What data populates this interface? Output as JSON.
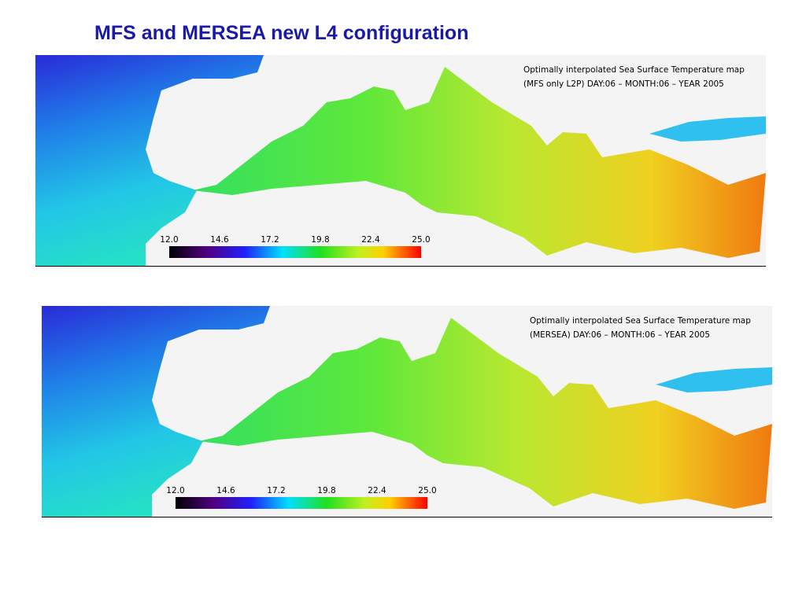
{
  "header": {
    "title": "MFS and MERSEA new L4 configuration"
  },
  "panels": [
    {
      "caption": [
        "Optimally interpolated Sea Surface Temperature map",
        "(MFS only L2P) DAY:06 – MONTH:06 – YEAR 2005"
      ],
      "colorbar": {
        "ticks": [
          "12.0",
          "14.6",
          "17.2",
          "19.8",
          "22.4",
          "25.0"
        ]
      }
    },
    {
      "caption": [
        "Optimally interpolated Sea Surface Temperature map",
        "(MERSEA) DAY:06 – MONTH:06 – YEAR 2005"
      ],
      "colorbar": {
        "ticks": [
          "12.0",
          "14.6",
          "17.2",
          "19.8",
          "22.4",
          "25.0"
        ]
      }
    }
  ]
}
